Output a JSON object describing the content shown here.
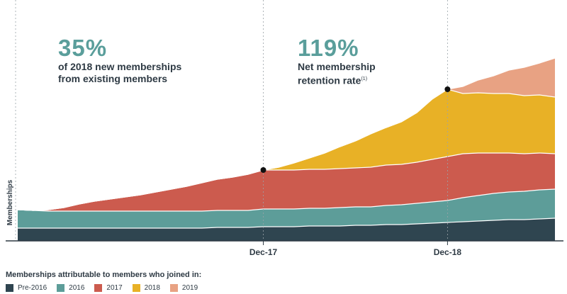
{
  "stat_left": {
    "value": "35%",
    "line1": "of 2018 new memberships",
    "line2": "from existing members"
  },
  "stat_right": {
    "value": "119%",
    "line1": "Net membership",
    "line2": "retention rate",
    "footnote": "(1)"
  },
  "legend_title": "Memberships attributable to members who joined in:",
  "chart_data": {
    "type": "area",
    "stacked": true,
    "ylabel": "Memberships",
    "xlabel": "",
    "x": [
      "2016-08",
      "2016-09",
      "2016-10",
      "2016-11",
      "2016-12",
      "2017-01",
      "2017-02",
      "2017-03",
      "2017-04",
      "2017-05",
      "2017-06",
      "2017-07",
      "2017-08",
      "2017-09",
      "2017-10",
      "2017-11",
      "2017-12",
      "2018-01",
      "2018-02",
      "2018-03",
      "2018-04",
      "2018-05",
      "2018-06",
      "2018-07",
      "2018-08",
      "2018-09",
      "2018-10",
      "2018-11",
      "2018-12",
      "2019-01",
      "2019-02",
      "2019-03",
      "2019-04",
      "2019-05",
      "2019-06",
      "2019-07"
    ],
    "xticks": [
      "Dec-17",
      "Dec-18"
    ],
    "series": [
      {
        "name": "Pre-2016",
        "color": "#2f4550",
        "values": [
          18,
          18,
          18,
          18,
          18,
          18,
          18,
          18,
          18,
          18,
          18,
          18,
          18,
          19,
          19,
          19,
          20,
          20,
          20,
          21,
          21,
          21,
          22,
          22,
          23,
          23,
          24,
          25,
          26,
          27,
          28,
          29,
          30,
          30,
          31,
          32
        ]
      },
      {
        "name": "2016",
        "color": "#5d9d99",
        "values": [
          26,
          25,
          24,
          24,
          24,
          24,
          24,
          24,
          24,
          24,
          24,
          24,
          24,
          24,
          24,
          24,
          25,
          25,
          25,
          25,
          25,
          26,
          26,
          26,
          27,
          28,
          29,
          30,
          31,
          34,
          36,
          38,
          39,
          40,
          41,
          41
        ]
      },
      {
        "name": "2017",
        "color": "#cc5b4e",
        "values": [
          0,
          0,
          2,
          5,
          10,
          14,
          17,
          20,
          23,
          27,
          31,
          35,
          40,
          44,
          47,
          51,
          55,
          55,
          55,
          55,
          55,
          55,
          55,
          56,
          57,
          57,
          58,
          60,
          62,
          62,
          60,
          57,
          55,
          53,
          52,
          50
        ]
      },
      {
        "name": "2018",
        "color": "#e8b126",
        "values": [
          0,
          0,
          0,
          0,
          0,
          0,
          0,
          0,
          0,
          0,
          0,
          0,
          0,
          0,
          0,
          0,
          0,
          4,
          10,
          16,
          23,
          31,
          38,
          47,
          53,
          60,
          70,
          85,
          95,
          85,
          85,
          84,
          84,
          82,
          82,
          80
        ]
      },
      {
        "name": "2019",
        "color": "#e8a283",
        "values": [
          0,
          0,
          0,
          0,
          0,
          0,
          0,
          0,
          0,
          0,
          0,
          0,
          0,
          0,
          0,
          0,
          0,
          0,
          0,
          0,
          0,
          0,
          0,
          0,
          0,
          0,
          0,
          0,
          0,
          10,
          18,
          25,
          33,
          40,
          45,
          55
        ]
      }
    ],
    "markers": [
      {
        "x": "2017-12",
        "series": "2017"
      },
      {
        "x": "2018-12",
        "series": "2018"
      }
    ],
    "grid": false,
    "legend_placement": "bottom-left"
  }
}
